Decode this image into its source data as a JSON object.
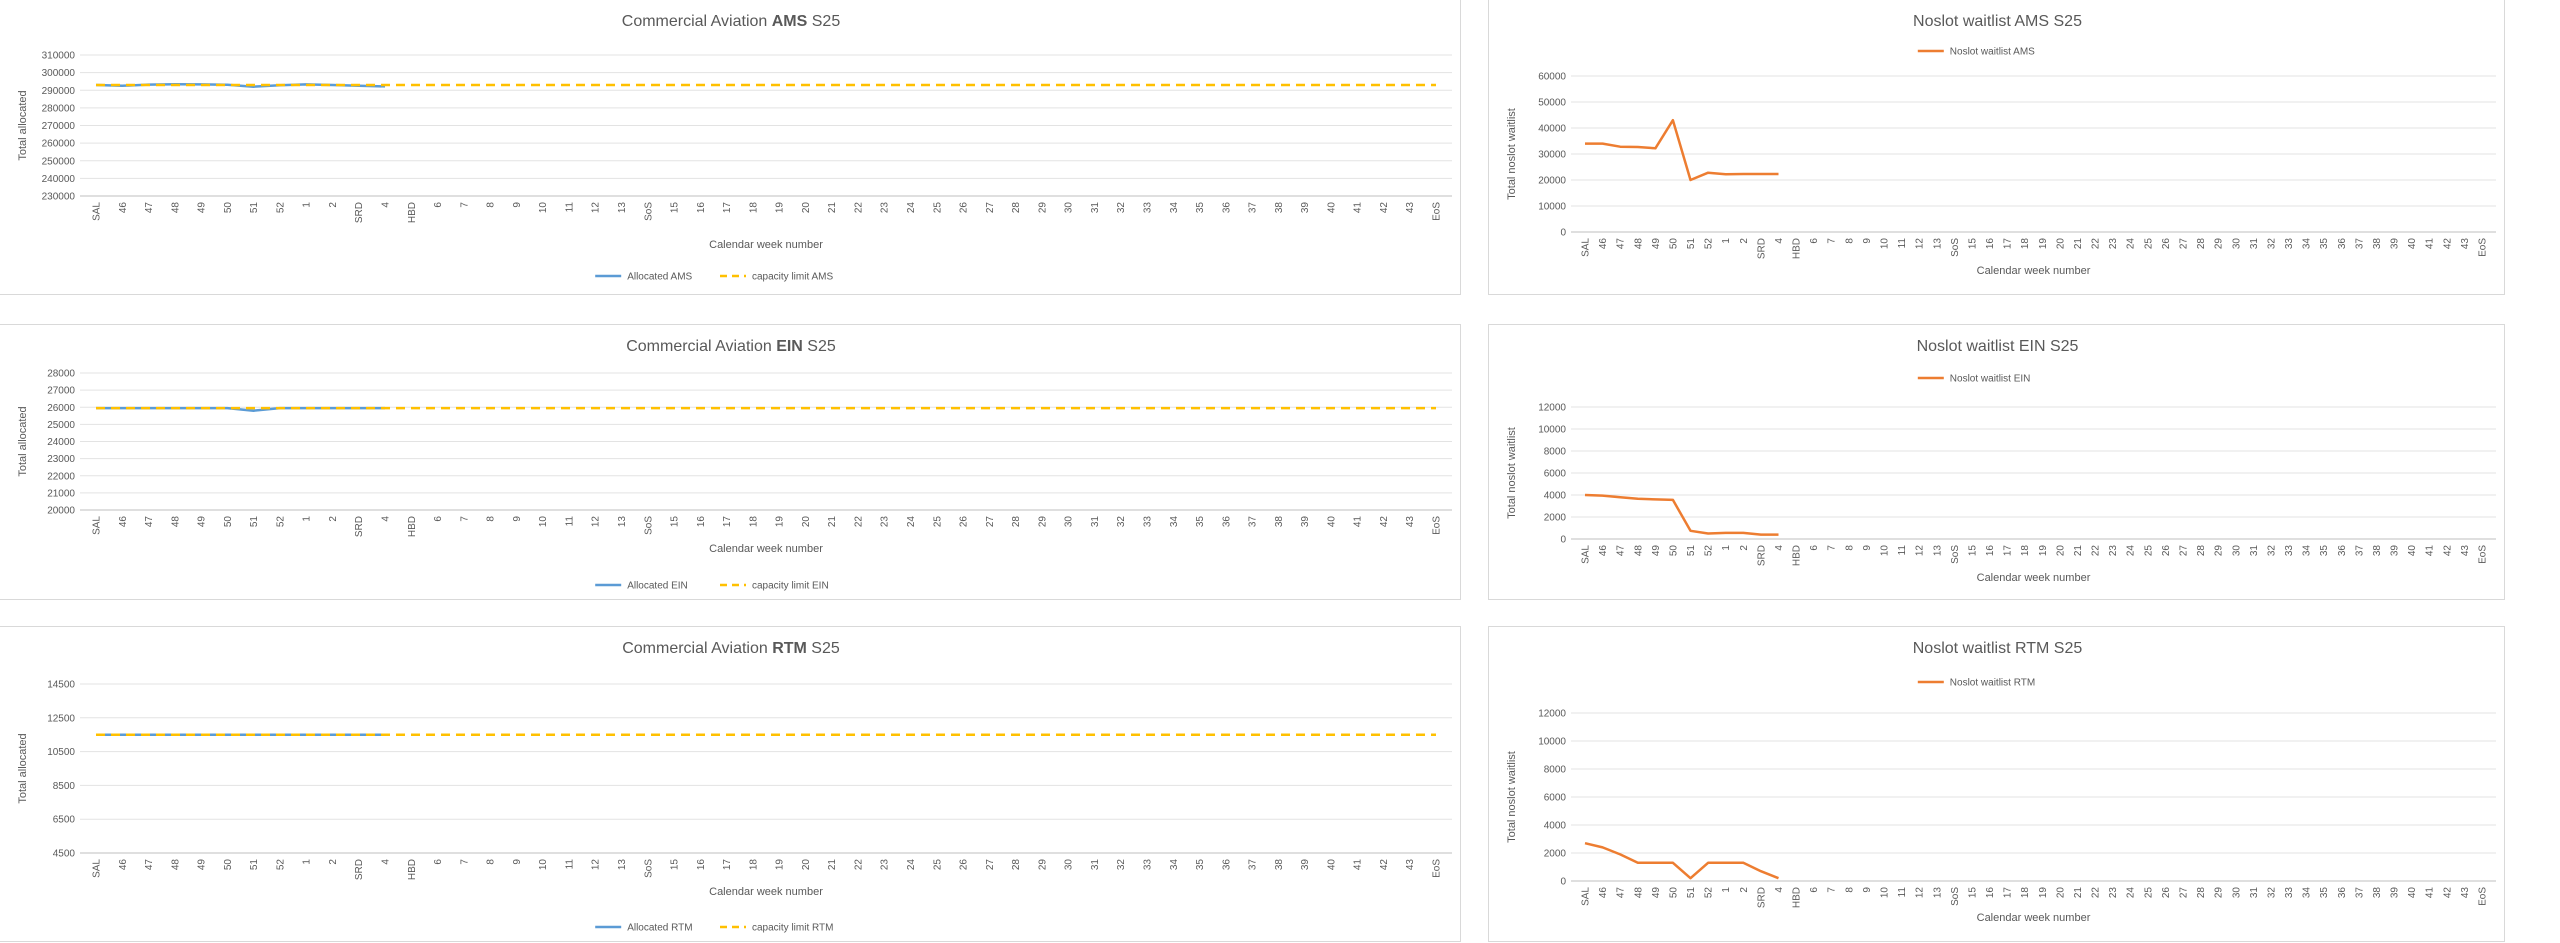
{
  "colors": {
    "allocated": "#5b9bd5",
    "capacity": "#ffc000",
    "waitlist": "#ed7d31"
  },
  "weeks": [
    "SAL",
    "46",
    "47",
    "48",
    "49",
    "50",
    "51",
    "52",
    "1",
    "2",
    "SRD",
    "4",
    "HBD",
    "6",
    "7",
    "8",
    "9",
    "10",
    "11",
    "12",
    "13",
    "SoS",
    "15",
    "16",
    "17",
    "18",
    "19",
    "20",
    "21",
    "22",
    "23",
    "24",
    "25",
    "26",
    "27",
    "28",
    "29",
    "30",
    "31",
    "32",
    "33",
    "34",
    "35",
    "36",
    "37",
    "38",
    "39",
    "40",
    "41",
    "42",
    "43",
    "EoS"
  ],
  "chart_data": [
    {
      "id": "alloc-ams",
      "type": "line",
      "title_parts": [
        {
          "text": "Commercial Aviation ",
          "bold": false
        },
        {
          "text": "AMS",
          "bold": true
        },
        {
          "text": " S25",
          "bold": false
        }
      ],
      "xlabel": "Calendar week number",
      "ylabel": "Total allocated",
      "ylim": [
        230000,
        310000
      ],
      "yticks": [
        "230000",
        "240000",
        "250000",
        "260000",
        "270000",
        "280000",
        "290000",
        "300000",
        "310000"
      ],
      "legend_position": "bottom",
      "series": [
        {
          "name": "Allocated AMS",
          "style": "solid",
          "color_key": "allocated",
          "values": [
            293000,
            292500,
            293200,
            293400,
            293300,
            293100,
            292000,
            292800,
            293300,
            293000,
            292600,
            292200
          ]
        },
        {
          "name": "capacity limit AMS",
          "style": "dashed",
          "color_key": "capacity",
          "values": [
            293000,
            293000,
            293000,
            293000,
            293000,
            293000,
            293000,
            293000,
            293000,
            293000,
            293000,
            293000,
            293000,
            293000,
            293000,
            293000,
            293000,
            293000,
            293000,
            293000,
            293000,
            293000,
            293000,
            293000,
            293000,
            293000,
            293000,
            293000,
            293000,
            293000,
            293000,
            293000,
            293000,
            293000,
            293000,
            293000,
            293000,
            293000,
            293000,
            293000,
            293000,
            293000,
            293000,
            293000,
            293000,
            293000,
            293000,
            293000,
            293000,
            293000,
            293000,
            293000
          ]
        }
      ]
    },
    {
      "id": "wait-ams",
      "type": "line",
      "title_parts": [
        {
          "text": "Noslot waitlist AMS S25",
          "bold": false
        }
      ],
      "xlabel": "Calendar week number",
      "ylabel": "Total noslot waitlist",
      "ylim": [
        0,
        60000
      ],
      "yticks": [
        "0",
        "10000",
        "20000",
        "30000",
        "40000",
        "50000",
        "60000"
      ],
      "legend_position": "top",
      "series": [
        {
          "name": "Noslot waitlist AMS",
          "style": "solid",
          "color_key": "waitlist",
          "values": [
            34000,
            34000,
            32800,
            32700,
            32200,
            43000,
            20000,
            22800,
            22200,
            22300,
            22300,
            22300
          ]
        }
      ]
    },
    {
      "id": "alloc-ein",
      "type": "line",
      "title_parts": [
        {
          "text": "Commercial Aviation ",
          "bold": false
        },
        {
          "text": "EIN",
          "bold": true
        },
        {
          "text": " S25",
          "bold": false
        }
      ],
      "xlabel": "Calendar week number",
      "ylabel": "Total allocated",
      "ylim": [
        20000,
        28000
      ],
      "yticks": [
        "20000",
        "21000",
        "22000",
        "23000",
        "24000",
        "25000",
        "26000",
        "27000",
        "28000"
      ],
      "legend_position": "bottom",
      "series": [
        {
          "name": "Allocated EIN",
          "style": "solid",
          "color_key": "allocated",
          "values": [
            25950,
            25950,
            25950,
            25950,
            25950,
            25950,
            25800,
            25950,
            25950,
            25950,
            25950,
            25950
          ]
        },
        {
          "name": "capacity limit EIN",
          "style": "dashed",
          "color_key": "capacity",
          "values": [
            25950,
            25950,
            25950,
            25950,
            25950,
            25950,
            25950,
            25950,
            25950,
            25950,
            25950,
            25950,
            25950,
            25950,
            25950,
            25950,
            25950,
            25950,
            25950,
            25950,
            25950,
            25950,
            25950,
            25950,
            25950,
            25950,
            25950,
            25950,
            25950,
            25950,
            25950,
            25950,
            25950,
            25950,
            25950,
            25950,
            25950,
            25950,
            25950,
            25950,
            25950,
            25950,
            25950,
            25950,
            25950,
            25950,
            25950,
            25950,
            25950,
            25950,
            25950,
            25950
          ]
        }
      ]
    },
    {
      "id": "wait-ein",
      "type": "line",
      "title_parts": [
        {
          "text": "Noslot waitlist EIN S25",
          "bold": false
        }
      ],
      "xlabel": "Calendar week number",
      "ylabel": "Total noslot waitlist",
      "ylim": [
        0,
        12000
      ],
      "yticks": [
        "0",
        "2000",
        "4000",
        "6000",
        "8000",
        "10000",
        "12000"
      ],
      "legend_position": "top",
      "series": [
        {
          "name": "Noslot waitlist EIN",
          "style": "solid",
          "color_key": "waitlist",
          "values": [
            4000,
            3950,
            3800,
            3650,
            3600,
            3550,
            750,
            500,
            550,
            550,
            400,
            400
          ]
        }
      ]
    },
    {
      "id": "alloc-rtm",
      "type": "line",
      "title_parts": [
        {
          "text": "Commercial Aviation ",
          "bold": false
        },
        {
          "text": "RTM",
          "bold": true
        },
        {
          "text": " S25",
          "bold": false
        }
      ],
      "xlabel": "Calendar week number",
      "ylabel": "Total allocated",
      "ylim": [
        4500,
        14500
      ],
      "yticks": [
        "4500",
        "6500",
        "8500",
        "10500",
        "12500",
        "14500"
      ],
      "legend_position": "bottom",
      "series": [
        {
          "name": "Allocated RTM",
          "style": "solid",
          "color_key": "allocated",
          "values": [
            11500,
            11500,
            11500,
            11500,
            11500,
            11500,
            11500,
            11500,
            11500,
            11500,
            11500,
            11500
          ]
        },
        {
          "name": "capacity limit RTM",
          "style": "dashed",
          "color_key": "capacity",
          "values": [
            11500,
            11500,
            11500,
            11500,
            11500,
            11500,
            11500,
            11500,
            11500,
            11500,
            11500,
            11500,
            11500,
            11500,
            11500,
            11500,
            11500,
            11500,
            11500,
            11500,
            11500,
            11500,
            11500,
            11500,
            11500,
            11500,
            11500,
            11500,
            11500,
            11500,
            11500,
            11500,
            11500,
            11500,
            11500,
            11500,
            11500,
            11500,
            11500,
            11500,
            11500,
            11500,
            11500,
            11500,
            11500,
            11500,
            11500,
            11500,
            11500,
            11500,
            11500,
            11500
          ]
        }
      ]
    },
    {
      "id": "wait-rtm",
      "type": "line",
      "title_parts": [
        {
          "text": "Noslot waitlist RTM S25",
          "bold": false
        }
      ],
      "xlabel": "Calendar week number",
      "ylabel": "Total noslot waitlist",
      "ylim": [
        0,
        12000
      ],
      "yticks": [
        "0",
        "2000",
        "4000",
        "6000",
        "8000",
        "10000",
        "12000"
      ],
      "legend_position": "top",
      "series": [
        {
          "name": "Noslot waitlist RTM",
          "style": "solid",
          "color_key": "waitlist",
          "values": [
            2700,
            2400,
            1900,
            1300,
            1300,
            1300,
            200,
            1300,
            1300,
            1300,
            700,
            200
          ]
        }
      ]
    }
  ]
}
